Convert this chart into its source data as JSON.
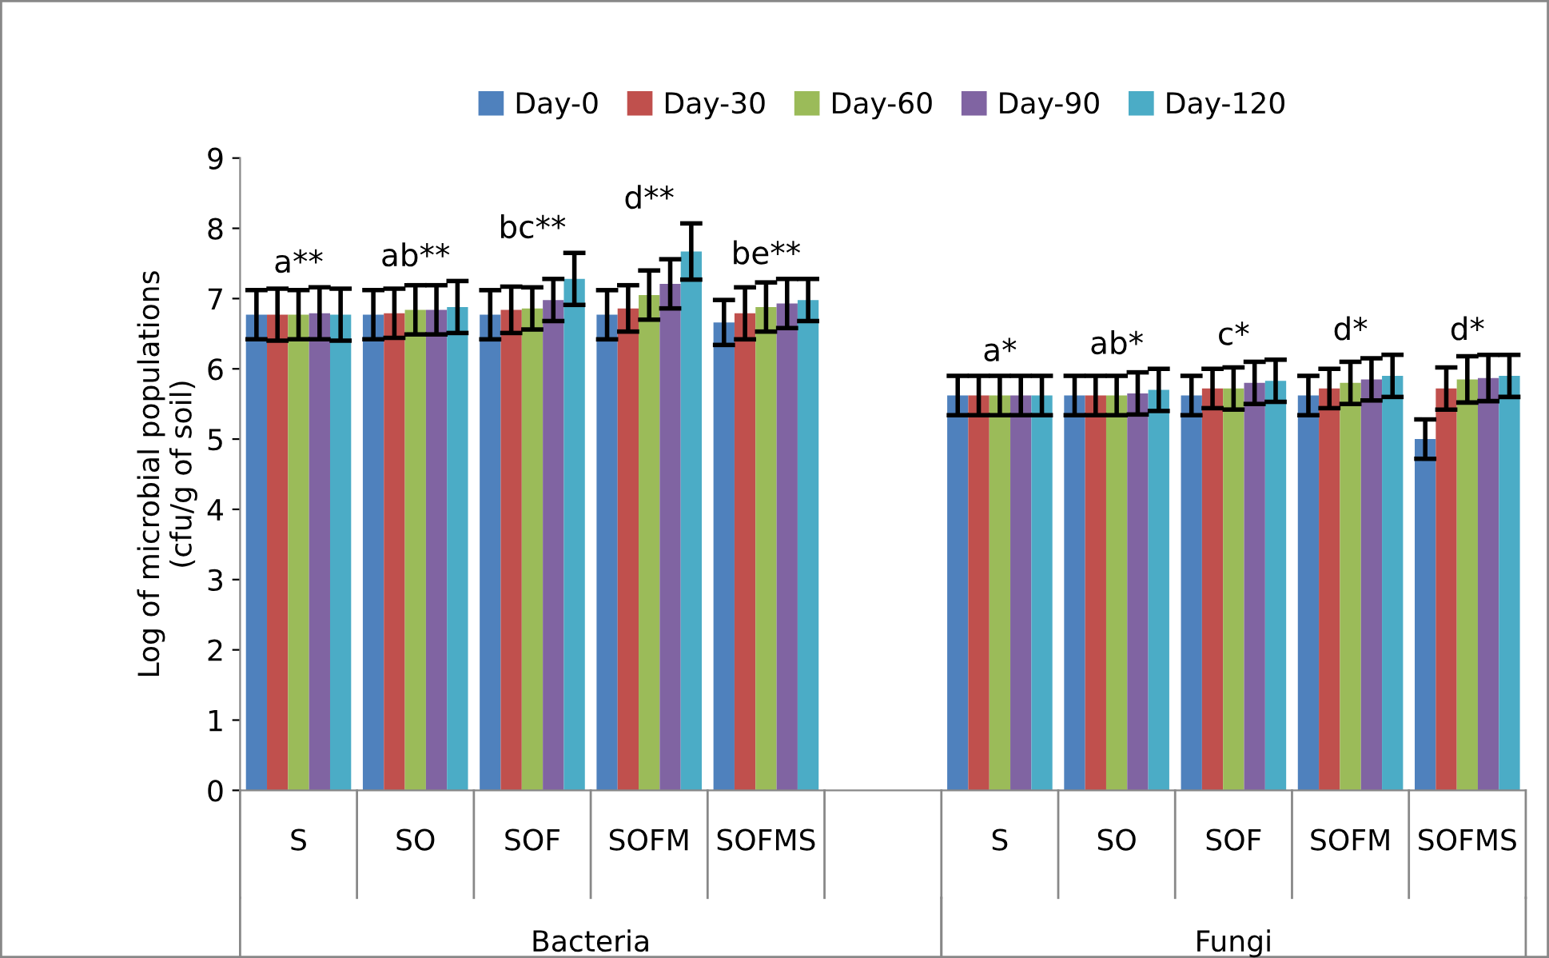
{
  "chart_data": {
    "type": "bar",
    "ylabel": "Log of microbial populations\n(cfu/g of soil)",
    "categories": [
      "S",
      "SO",
      "SOF",
      "SOFM",
      "SOFMS",
      null,
      "S",
      "SO",
      "SOF",
      "SOFM",
      "SOFMS"
    ],
    "series": [
      {
        "name": "Day-0",
        "color": "#4f81bd",
        "values": [
          6.77,
          6.77,
          6.77,
          6.77,
          6.66,
          null,
          5.62,
          5.62,
          5.62,
          5.62,
          5.0
        ],
        "errors": [
          0.35,
          0.35,
          0.35,
          0.35,
          0.32,
          null,
          0.28,
          0.28,
          0.28,
          0.28,
          0.28
        ]
      },
      {
        "name": "Day-30",
        "color": "#c0504d",
        "values": [
          6.77,
          6.79,
          6.84,
          6.86,
          6.79,
          null,
          5.62,
          5.62,
          5.72,
          5.72,
          5.72
        ],
        "errors": [
          0.37,
          0.35,
          0.33,
          0.33,
          0.37,
          null,
          0.28,
          0.28,
          0.28,
          0.28,
          0.3
        ]
      },
      {
        "name": "Day-60",
        "color": "#9bbb59",
        "values": [
          6.77,
          6.84,
          6.86,
          7.05,
          6.88,
          null,
          5.62,
          5.62,
          5.72,
          5.8,
          5.85
        ],
        "errors": [
          0.35,
          0.35,
          0.3,
          0.35,
          0.35,
          null,
          0.28,
          0.28,
          0.3,
          0.3,
          0.33
        ]
      },
      {
        "name": "Day-90",
        "color": "#8064a2",
        "values": [
          6.79,
          6.84,
          6.98,
          7.21,
          6.93,
          null,
          5.62,
          5.65,
          5.8,
          5.85,
          5.87
        ],
        "errors": [
          0.37,
          0.35,
          0.3,
          0.35,
          0.35,
          null,
          0.28,
          0.3,
          0.3,
          0.3,
          0.33
        ]
      },
      {
        "name": "Day-120",
        "color": "#4bacc6",
        "values": [
          6.77,
          6.88,
          7.28,
          7.67,
          6.98,
          null,
          5.62,
          5.7,
          5.83,
          5.9,
          5.9
        ],
        "errors": [
          0.37,
          0.37,
          0.37,
          0.4,
          0.3,
          null,
          0.28,
          0.3,
          0.3,
          0.3,
          0.3
        ]
      }
    ],
    "ylim": [
      0,
      9
    ],
    "yticks": [
      0,
      1,
      2,
      3,
      4,
      5,
      6,
      7,
      8,
      9
    ],
    "annotations": [
      "a**",
      "ab**",
      "bc**",
      "d**",
      "be**",
      "a*",
      "ab*",
      "c*",
      "d*",
      "d*",
      "Bacteria",
      "Fungi"
    ],
    "legend": "top",
    "grid": false
  }
}
